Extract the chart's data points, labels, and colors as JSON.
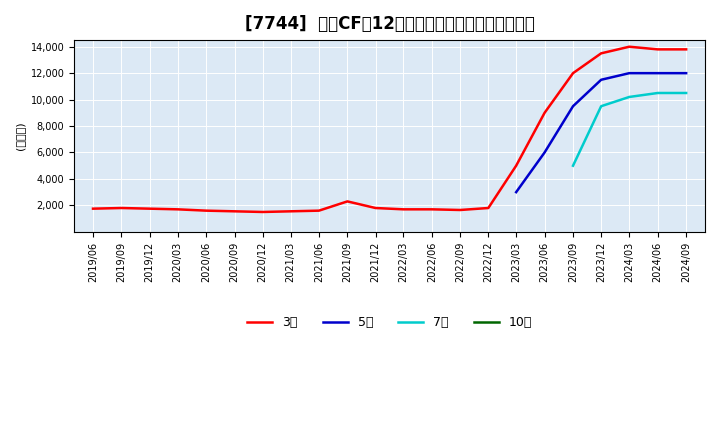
{
  "title": "[7744]  営業CFの12か月移動合計の標準偏差の推移",
  "ylabel": "(百万円)",
  "legend_labels": [
    "3年",
    "5年",
    "7年",
    "10年"
  ],
  "legend_colors": [
    "#ff0000",
    "#0000cc",
    "#00cccc",
    "#006600"
  ],
  "ylim": [
    0,
    14500
  ],
  "yticks": [
    2000,
    4000,
    6000,
    8000,
    10000,
    12000,
    14000
  ],
  "background_color": "#dce9f5",
  "series": {
    "3year": {
      "dates": [
        "2019-06",
        "2019-09",
        "2019-12",
        "2020-03",
        "2020-06",
        "2020-09",
        "2020-12",
        "2021-03",
        "2021-06",
        "2021-09",
        "2021-12",
        "2022-03",
        "2022-06",
        "2022-09",
        "2022-12",
        "2023-03",
        "2023-06",
        "2023-09",
        "2023-12",
        "2024-03",
        "2024-06",
        "2024-09"
      ],
      "values": [
        1750,
        1800,
        1750,
        1700,
        1600,
        1550,
        1500,
        1550,
        1600,
        2300,
        1800,
        1700,
        1700,
        1650,
        1800,
        5000,
        9000,
        12000,
        13500,
        14000,
        13800,
        13800
      ],
      "color": "#ff0000"
    },
    "5year": {
      "dates": [
        "2019-06",
        "2019-09",
        "2019-12",
        "2020-03",
        "2020-06",
        "2020-09",
        "2020-12",
        "2021-03",
        "2021-06",
        "2021-09",
        "2021-12",
        "2022-03",
        "2022-06",
        "2022-09",
        "2022-12",
        "2023-03",
        "2023-06",
        "2023-09",
        "2023-12",
        "2024-03",
        "2024-06",
        "2024-09"
      ],
      "values": [
        null,
        null,
        null,
        null,
        null,
        null,
        null,
        null,
        null,
        null,
        null,
        null,
        null,
        null,
        null,
        3000,
        6000,
        9500,
        11500,
        12000,
        12000,
        12000
      ],
      "color": "#0000cc"
    },
    "7year": {
      "dates": [
        "2019-06",
        "2019-09",
        "2019-12",
        "2020-03",
        "2020-06",
        "2020-09",
        "2020-12",
        "2021-03",
        "2021-06",
        "2021-09",
        "2021-12",
        "2022-03",
        "2022-06",
        "2022-09",
        "2022-12",
        "2023-03",
        "2023-06",
        "2023-09",
        "2023-12",
        "2024-03",
        "2024-06",
        "2024-09"
      ],
      "values": [
        null,
        null,
        null,
        null,
        null,
        null,
        null,
        null,
        null,
        null,
        null,
        null,
        null,
        null,
        null,
        null,
        null,
        5000,
        9500,
        10200,
        10500,
        10500
      ],
      "color": "#00cccc"
    },
    "10year": {
      "dates": [
        "2019-06",
        "2019-09",
        "2019-12",
        "2020-03",
        "2020-06",
        "2020-09",
        "2020-12",
        "2021-03",
        "2021-06",
        "2021-09",
        "2021-12",
        "2022-03",
        "2022-06",
        "2022-09",
        "2022-12",
        "2023-03",
        "2023-06",
        "2023-09",
        "2023-12",
        "2024-03",
        "2024-06",
        "2024-09"
      ],
      "values": [
        null,
        null,
        null,
        null,
        null,
        null,
        null,
        null,
        null,
        null,
        null,
        null,
        null,
        null,
        null,
        null,
        null,
        null,
        null,
        null,
        null,
        null
      ],
      "color": "#006600"
    }
  }
}
